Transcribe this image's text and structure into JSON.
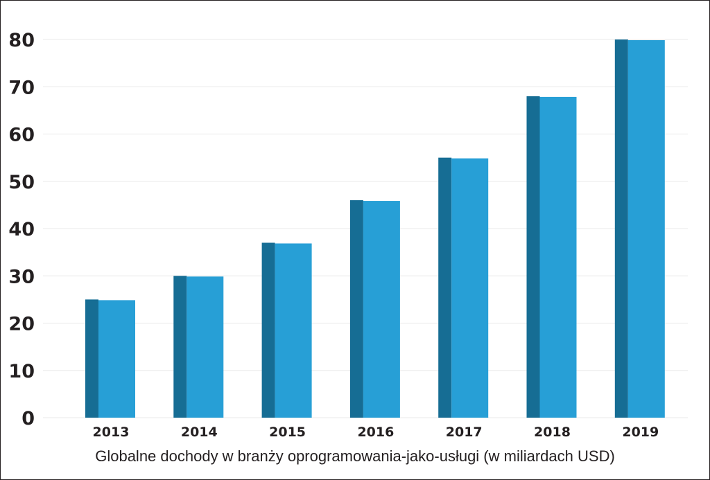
{
  "chart_data": {
    "type": "bar",
    "categories": [
      "2013",
      "2014",
      "2015",
      "2016",
      "2017",
      "2018",
      "2019"
    ],
    "values": [
      25,
      30,
      37,
      46,
      55,
      68,
      80
    ],
    "title": "",
    "xlabel": "Globalne dochody w branży oprogramowania-jako-usługi (w miliardach USD)",
    "ylabel": "",
    "ylim": [
      0,
      80
    ],
    "yticks": [
      "0",
      "10",
      "20",
      "30",
      "40",
      "50",
      "60",
      "70",
      "80"
    ],
    "grid": true,
    "legend": "none",
    "colors": {
      "bar_face": "#279fd6",
      "bar_side": "#166d94",
      "grid": "#e8e8e8",
      "text": "#231f20"
    }
  }
}
